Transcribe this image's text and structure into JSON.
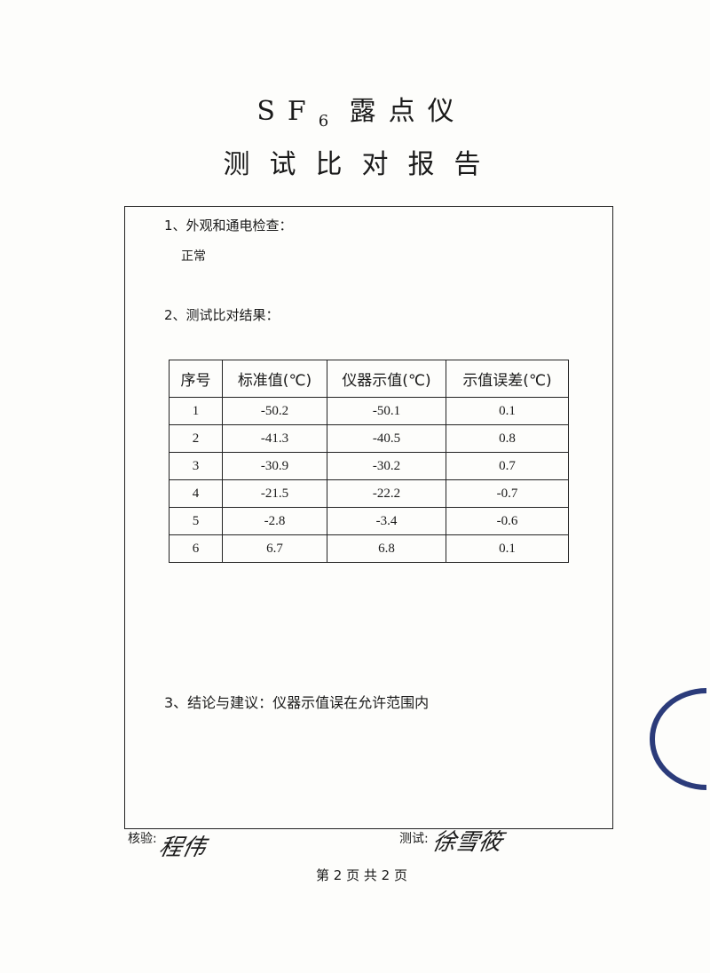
{
  "title": {
    "line1_main": "SF",
    "line1_sub": "6",
    "line1_rest": " 露点仪",
    "line2": "测试比对报告"
  },
  "sections": {
    "s1_label": "1、外观和通电检查：",
    "s1_value": "正常",
    "s2_label": "2、测试比对结果：",
    "s3_label": "3、结论与建议：仪器示值误在允许范围内"
  },
  "table": {
    "headers": [
      "序号",
      "标准值(℃)",
      "仪器示值(℃)",
      "示值误差(℃)"
    ],
    "rows": [
      [
        "1",
        "-50.2",
        "-50.1",
        "0.1"
      ],
      [
        "2",
        "-41.3",
        "-40.5",
        "0.8"
      ],
      [
        "3",
        "-30.9",
        "-30.2",
        "0.7"
      ],
      [
        "4",
        "-21.5",
        "-22.2",
        "-0.7"
      ],
      [
        "5",
        "-2.8",
        "-3.4",
        "-0.6"
      ],
      [
        "6",
        "6.7",
        "6.8",
        "0.1"
      ]
    ]
  },
  "signatures": {
    "check_label": "核验:",
    "check_name": "程伟",
    "test_label": "测试:",
    "test_name": "徐雪筱"
  },
  "footer": "第 2 页   共 2 页",
  "stamp_color": "#2b3b7a"
}
